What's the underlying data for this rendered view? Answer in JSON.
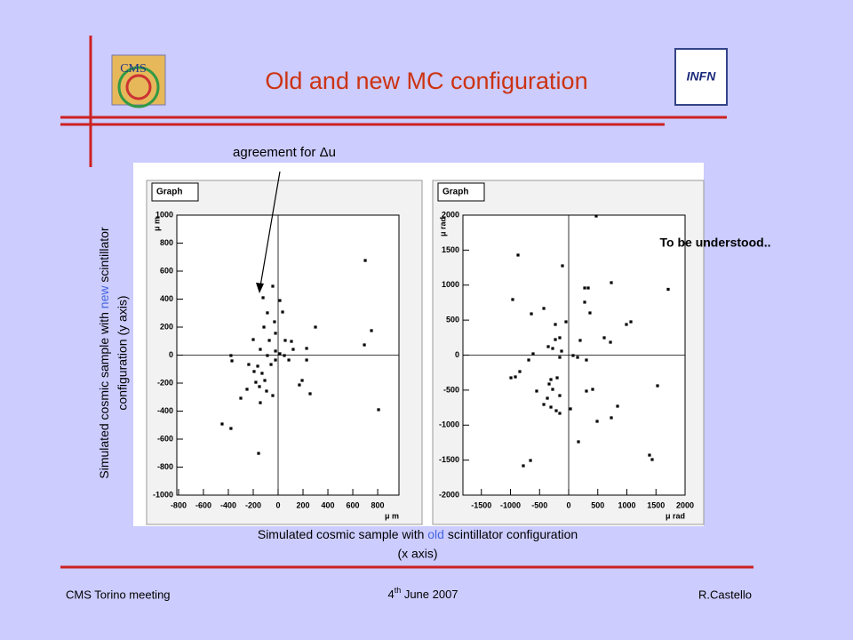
{
  "slide": {
    "title": "Old and new MC configuration",
    "logo_left": "CMS",
    "logo_right": "INFN",
    "annotation": "agreement for Δu",
    "note": "To be understood..",
    "ylabel_line1": [
      "Simulated cosmic sample with ",
      "new",
      " scintillator"
    ],
    "ylabel_line2": "configuration (y axis)",
    "xlabel_line1": [
      "Simulated cosmic sample with ",
      "old",
      " scintillator configuration"
    ],
    "xlabel_line2": "(x axis)",
    "footer_left": "CMS Torino meeting",
    "footer_center": [
      "4",
      "th",
      " June 2007"
    ],
    "footer_right": "R.Castello"
  },
  "chart_data": [
    {
      "type": "scatter",
      "panel_label": "Graph",
      "color": "#000000",
      "zero_lines": true,
      "xlabel": "μ m",
      "ylabel": "μ m",
      "xlim": [
        -814,
        971
      ],
      "ylim": [
        -1000,
        1000
      ],
      "xticks": [
        -800,
        -600,
        -400,
        -200,
        0,
        200,
        400,
        600,
        800
      ],
      "yticks": [
        -1000,
        -800,
        -600,
        -400,
        -200,
        0,
        200,
        400,
        600,
        800,
        1000
      ],
      "x": [
        700,
        -43,
        -121,
        14,
        -86,
        36,
        -29,
        -114,
        -200,
        -71,
        57,
        107,
        229,
        300,
        121,
        -143,
        -21,
        14,
        50,
        -86,
        -21,
        -57,
        86,
        -379,
        -371,
        -236,
        -164,
        -129,
        -193,
        -107,
        -179,
        -150,
        -250,
        -93,
        -43,
        229,
        193,
        171,
        257,
        -300,
        -143,
        -450,
        -379,
        -157,
        750,
        693,
        807,
        -21
      ],
      "y": [
        676,
        492,
        410,
        390,
        302,
        308,
        238,
        200,
        111,
        105,
        105,
        98,
        48,
        200,
        41,
        41,
        29,
        10,
        -3,
        -3,
        -35,
        -67,
        -35,
        -3,
        -41,
        -67,
        -79,
        -130,
        -117,
        -181,
        -194,
        -225,
        -244,
        -257,
        -289,
        -35,
        -181,
        -213,
        -276,
        -308,
        -340,
        -492,
        -524,
        -702,
        175,
        73,
        -390,
        156
      ]
    },
    {
      "type": "scatter",
      "panel_label": "Graph",
      "color": "#000000",
      "zero_lines": true,
      "xlabel": "μ rad",
      "ylabel": "μ rad",
      "xlim": [
        -1817,
        2000
      ],
      "ylim": [
        -2000,
        2000
      ],
      "xticks": [
        -1500,
        -1000,
        -500,
        0,
        500,
        1000,
        1500,
        2000
      ],
      "yticks": [
        -2000,
        -1500,
        -1000,
        -500,
        0,
        500,
        1000,
        1500,
        2000
      ],
      "x": [
        473,
        -870,
        -107,
        733,
        275,
        336,
        1710,
        -962,
        275,
        366,
        -641,
        -427,
        992,
        1069,
        -229,
        -46,
        -153,
        -229,
        198,
        611,
        718,
        -351,
        -275,
        -611,
        -122,
        76,
        153,
        -153,
        -687,
        305,
        -840,
        -916,
        -992,
        -198,
        -305,
        -336,
        -550,
        -275,
        -366,
        -153,
        305,
        412,
        1527,
        -305,
        -214,
        -153,
        -427,
        31,
        168,
        840,
        489,
        733,
        1389,
        1435,
        -656,
        -779
      ],
      "y": [
        1987,
        1429,
        1276,
        1035,
        959,
        959,
        940,
        794,
        756,
        603,
        590,
        667,
        438,
        476,
        438,
        476,
        248,
        222,
        210,
        248,
        184,
        121,
        95,
        19,
        57,
        -6,
        -32,
        -32,
        -70,
        -70,
        -235,
        -311,
        -324,
        -324,
        -349,
        -413,
        -514,
        -489,
        -616,
        -578,
        -514,
        -489,
        -438,
        -743,
        -794,
        -832,
        -705,
        -768,
        -1238,
        -730,
        -946,
        -895,
        -1429,
        -1492,
        -1505,
        -1581
      ]
    }
  ]
}
